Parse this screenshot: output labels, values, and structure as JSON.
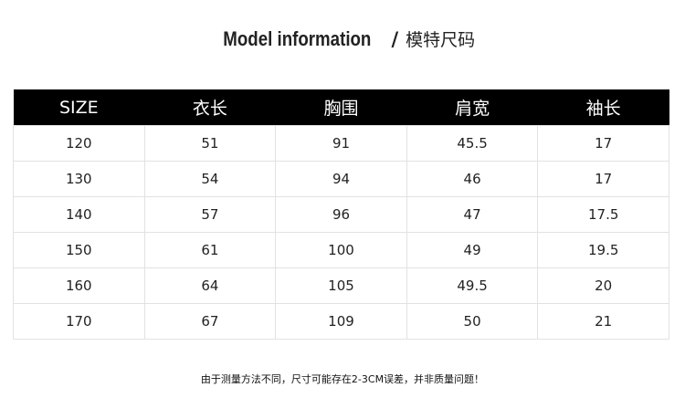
{
  "title": {
    "en": "Model information",
    "separator": "/",
    "cn": "模特尺码"
  },
  "table": {
    "headers": [
      "SIZE",
      "衣长",
      "胸围",
      "肩宽",
      "袖长"
    ],
    "rows": [
      [
        "120",
        "51",
        "91",
        "45.5",
        "17"
      ],
      [
        "130",
        "54",
        "94",
        "46",
        "17"
      ],
      [
        "140",
        "57",
        "96",
        "47",
        "17.5"
      ],
      [
        "150",
        "61",
        "100",
        "49",
        "19.5"
      ],
      [
        "160",
        "64",
        "105",
        "49.5",
        "20"
      ],
      [
        "170",
        "67",
        "109",
        "50",
        "21"
      ]
    ]
  },
  "note": "由于测量方法不同，尺寸可能存在2-3CM误差，并非质量问题！"
}
